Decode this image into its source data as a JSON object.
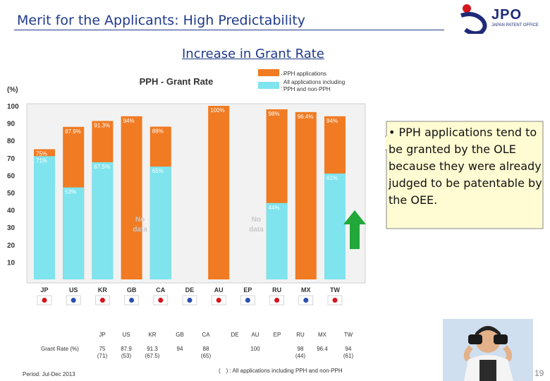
{
  "header": {
    "title": "Merit for the Applicants: High Predictability",
    "logo_text": "JPO",
    "logo_subtext": "JAPAN PATENT OFFICE",
    "subtitle": "Increase in Grant Rate"
  },
  "chart_data": {
    "type": "bar",
    "title": "PPH - Grant Rate",
    "ylabel": "(%)",
    "ylim": [
      0,
      100
    ],
    "yticks": [
      10,
      20,
      30,
      40,
      50,
      60,
      70,
      80,
      90,
      100
    ],
    "categories": [
      "JP",
      "US",
      "KR",
      "GB",
      "CA",
      "DE",
      "AU",
      "EP",
      "RU",
      "MX",
      "TW"
    ],
    "series": [
      {
        "name": "PPH applications",
        "color": "#f07b23",
        "values": [
          75,
          87.9,
          91.3,
          94,
          88,
          null,
          100,
          null,
          98,
          96.4,
          94
        ],
        "labels": [
          "75%",
          "87.9%",
          "91.3%",
          "94%",
          "88%",
          "",
          "100%",
          "",
          "98%",
          "96.4%",
          "94%"
        ]
      },
      {
        "name": "All applications including PPH and non-PPH",
        "color": "#7fe4ee",
        "values": [
          71,
          53,
          67.5,
          null,
          65,
          null,
          null,
          null,
          44,
          null,
          61
        ],
        "labels": [
          "71%",
          "53%",
          "67.5%",
          "",
          "65%",
          "",
          "",
          "",
          "44%",
          "",
          "61%"
        ]
      }
    ],
    "no_data": [
      {
        "category": "GB",
        "text": "No data"
      },
      {
        "category": "EP",
        "text": "No data"
      }
    ],
    "legend_placement": "top-right",
    "grid": false
  },
  "callout": {
    "text": "• PPH applications tend to be granted by the OLE because they were already judged to be patentable by the OEE."
  },
  "table": {
    "row_label": "Grant Rate (%)",
    "headers": [
      "JP",
      "US",
      "KR",
      "GB",
      "CA",
      "DE",
      "AU",
      "EP",
      "RU",
      "MX",
      "TW"
    ],
    "line1": [
      "75",
      "87.9",
      "91.3",
      "94",
      "88",
      "",
      "100",
      "",
      "98",
      "96.4",
      "94"
    ],
    "line2": [
      "(71)",
      "(53)",
      "(67.5)",
      "",
      "(65)",
      "",
      "",
      "",
      "(44)",
      "",
      "(61)"
    ]
  },
  "footer": {
    "note": "(　) : All applications including PPH and non-PPH",
    "period": "Period:   Jul-Dec 2013",
    "page_number": "19"
  }
}
